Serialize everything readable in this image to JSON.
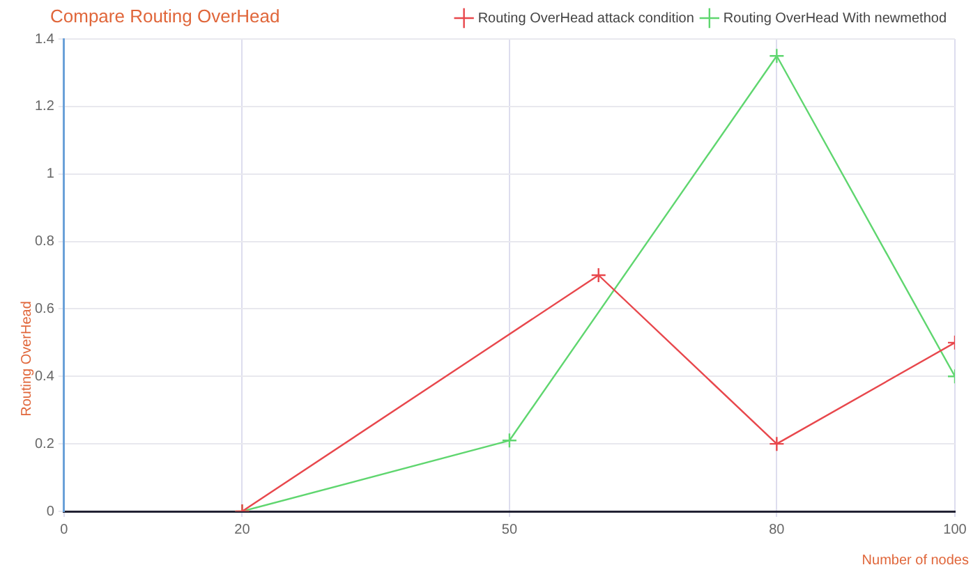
{
  "chart_data": {
    "type": "line",
    "title": "Compare Routing OverHead",
    "xlabel": "Number of nodes",
    "ylabel": "Routing OverHead",
    "x": [
      20,
      60,
      80,
      100
    ],
    "series": [
      {
        "name": "Routing OverHead attack condition",
        "color": "#e8474c",
        "values": [
          0,
          0.7,
          0.2,
          0.5
        ]
      },
      {
        "name": "Routing OverHead With newmethod",
        "color": "#5fd66f",
        "x": [
          20,
          50,
          80,
          100
        ],
        "values": [
          0,
          0.21,
          1.35,
          0.4
        ]
      }
    ],
    "xlim": [
      0,
      100
    ],
    "xticks": [
      0,
      20,
      50,
      80,
      100
    ],
    "ylim": [
      0,
      1.4
    ],
    "yticks": [
      0,
      0.2,
      0.4,
      0.6,
      0.8,
      1,
      1.2,
      1.4
    ],
    "grid": true,
    "legend": "top right",
    "marker": "cross",
    "line_style": "solid"
  }
}
